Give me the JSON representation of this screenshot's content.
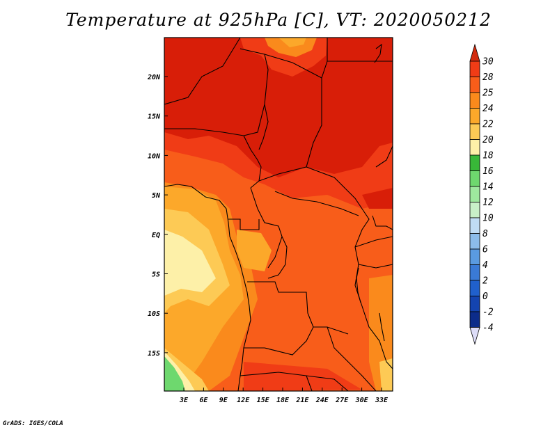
{
  "title": "Temperature at 925hPa [C], VT: 2020050212",
  "credit": "GrADS: IGES/COLA",
  "map": {
    "lon_ticks": [
      "3E",
      "6E",
      "9E",
      "12E",
      "15E",
      "18E",
      "21E",
      "24E",
      "27E",
      "30E",
      "33E"
    ],
    "lat_ticks": [
      "20N",
      "15N",
      "10N",
      "5N",
      "EQ",
      "5S",
      "10S",
      "15S"
    ]
  },
  "colorbar": {
    "levels": [
      "30",
      "28",
      "25",
      "24",
      "22",
      "20",
      "18",
      "16",
      "14",
      "12",
      "10",
      "8",
      "6",
      "4",
      "2",
      "0",
      "-2",
      "-4"
    ],
    "colors": {
      "above_30": "#d22a0e",
      "b28_30": "#f03c16",
      "b25_28": "#f85d1a",
      "b24_25": "#fa8a1c",
      "b22_24": "#fca82a",
      "b20_22": "#fdca55",
      "b18_20": "#fdf0a8",
      "b16_18": "#38b838",
      "b14_16": "#6ed86e",
      "b12_14": "#9ee89e",
      "b10_12": "#c8f0c8",
      "b8_10": "#c0dcf4",
      "b6_8": "#8cbcea",
      "b4_6": "#5a9ae0",
      "b2_4": "#3a7ad6",
      "b0_2": "#2060cc",
      "bm2_0": "#1444b0",
      "bm4_m2": "#0c2c8a",
      "below_m4": "#080c58",
      "tri_below": "#ddddf8"
    }
  }
}
